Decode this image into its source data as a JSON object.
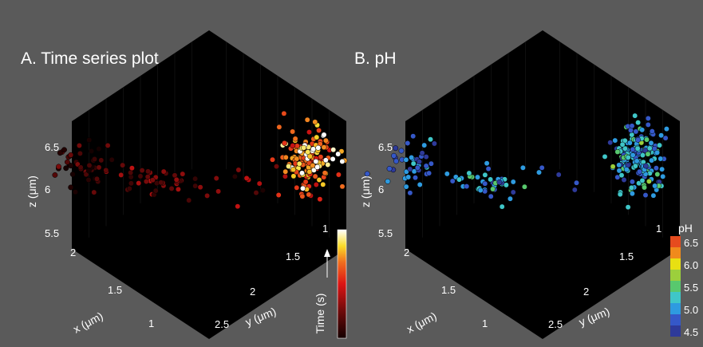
{
  "chart_data": [
    {
      "type": "scatter",
      "panel_title": "A. Time series plot",
      "xlabel": "x (μm)",
      "ylabel": "y (μm)",
      "zlabel": "z (μm)",
      "x_ticks": [
        "2",
        "1.5",
        "1"
      ],
      "y_ticks": [
        "1",
        "1.5",
        "2",
        "2.5"
      ],
      "z_ticks": [
        "6.5",
        "6",
        "5.5"
      ],
      "xlim": [
        0.9,
        2.3
      ],
      "ylim": [
        0.9,
        2.9
      ],
      "zlim": [
        5.3,
        6.8
      ],
      "color_by": "time",
      "colorbar": {
        "label": "Time (s)",
        "colormap": "black-red-yellow-white"
      },
      "clusters": [
        {
          "x": 2.2,
          "y": 0.95,
          "z": 6.2,
          "n": 45,
          "color_value": 0.08
        },
        {
          "x": 1.8,
          "y": 1.0,
          "z": 6.05,
          "n": 40,
          "color_value": 0.25
        },
        {
          "x": 1.35,
          "y": 1.05,
          "z": 6.08,
          "n": 12,
          "color_value": 0.3
        },
        {
          "x": 1.0,
          "y": 1.0,
          "z": 6.35,
          "n": 130,
          "color_value": 0.65
        },
        {
          "x": 0.95,
          "y": 1.0,
          "z": 6.45,
          "n": 40,
          "color_value": 0.95
        }
      ]
    },
    {
      "type": "scatter",
      "panel_title": "B. pH",
      "xlabel": "x (μm)",
      "ylabel": "y (μm)",
      "zlabel": "z (μm)",
      "x_ticks": [
        "2",
        "1.5",
        "1"
      ],
      "y_ticks": [
        "1",
        "1.5",
        "2",
        "2.5"
      ],
      "z_ticks": [
        "6.5",
        "6",
        "5.5"
      ],
      "xlim": [
        0.9,
        2.3
      ],
      "ylim": [
        0.9,
        2.9
      ],
      "zlim": [
        5.3,
        6.8
      ],
      "color_by": "pH",
      "colorbar": {
        "label": "pH",
        "ticks": [
          "6.5",
          "6.0",
          "5.5",
          "5.0",
          "4.5"
        ],
        "colors": [
          "#e64b1e",
          "#f08a1c",
          "#e8e012",
          "#9ccf3c",
          "#58c86e",
          "#3fc6c8",
          "#2e9be0",
          "#3558c8",
          "#2e3a9a"
        ]
      },
      "clusters": [
        {
          "x": 2.2,
          "y": 0.95,
          "z": 6.2,
          "n": 45,
          "color_value": 4.7
        },
        {
          "x": 1.8,
          "y": 1.0,
          "z": 6.05,
          "n": 40,
          "color_value": 5.1
        },
        {
          "x": 1.35,
          "y": 1.05,
          "z": 6.08,
          "n": 12,
          "color_value": 5.0
        },
        {
          "x": 1.0,
          "y": 1.0,
          "z": 6.4,
          "n": 170,
          "color_value": 5.1
        }
      ]
    }
  ]
}
